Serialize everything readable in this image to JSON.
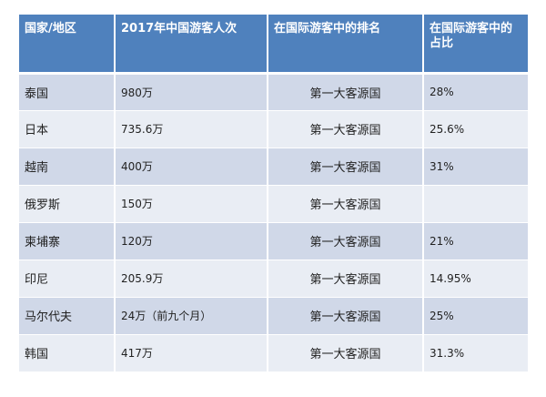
{
  "header": {
    "col1": "国家/地区",
    "col2": "2017年中国游客人次",
    "col3": "在国际游客中的排名",
    "col4": "在国际游客中的占比"
  },
  "rows": [
    {
      "country": "泰国",
      "visitors": "980万",
      "rank": "第一大客源国",
      "share": "28%"
    },
    {
      "country": "日本",
      "visitors": "735.6万",
      "rank": "第一大客源国",
      "share": "25.6%"
    },
    {
      "country": "越南",
      "visitors": "400万",
      "rank": "第一大客源国",
      "share": "31%"
    },
    {
      "country": "俄罗斯",
      "visitors": "150万",
      "rank": "第一大客源国",
      "share": ""
    },
    {
      "country": "柬埔寨",
      "visitors": "120万",
      "rank": "第一大客源国",
      "share": "21%"
    },
    {
      "country": "印尼",
      "visitors": "205.9万",
      "rank": "第一大客源国",
      "share": "14.95%"
    },
    {
      "country": "马尔代夫",
      "visitors": "24万（前九个月）",
      "rank": "第一大客源国",
      "share": "25%"
    },
    {
      "country": "韩国",
      "visitors": "417万",
      "rank": "第一大客源国",
      "share": "31.3%"
    }
  ]
}
